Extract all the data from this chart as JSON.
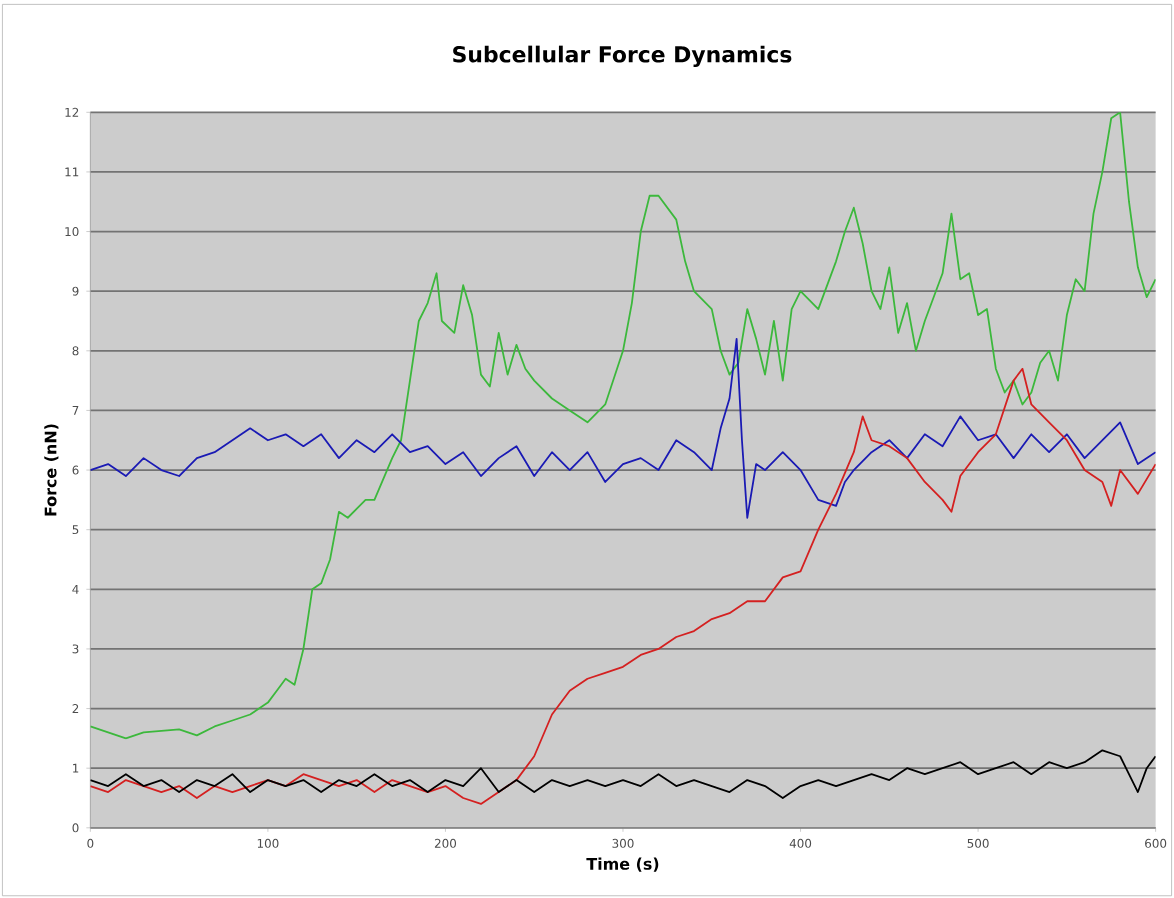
{
  "chart_data": {
    "type": "line",
    "title": "Subcellular Force Dynamics",
    "xlabel": "Time (s)",
    "ylabel": "Force (nN)",
    "xlim": [
      0,
      600
    ],
    "xticks": [
      0,
      100,
      200,
      300,
      400,
      500,
      600
    ],
    "ylim": [
      0,
      12
    ],
    "yticks": [
      0,
      1,
      2,
      3,
      4,
      5,
      6,
      7,
      8,
      9,
      10,
      11,
      12
    ],
    "grid": "y",
    "marker": "none",
    "line_style": "solid",
    "series": [
      {
        "color": "#3cb83c",
        "x": [
          0,
          10,
          20,
          30,
          50,
          60,
          70,
          80,
          90,
          100,
          105,
          110,
          115,
          120,
          125,
          130,
          135,
          140,
          145,
          155,
          160,
          170,
          175,
          180,
          185,
          190,
          195,
          198,
          205,
          210,
          215,
          220,
          225,
          230,
          235,
          240,
          245,
          250,
          260,
          270,
          280,
          290,
          300,
          305,
          310,
          315,
          320,
          330,
          335,
          340,
          350,
          355,
          360,
          365,
          370,
          375,
          380,
          385,
          390,
          395,
          400,
          410,
          420,
          425,
          430,
          435,
          440,
          445,
          450,
          455,
          460,
          465,
          470,
          480,
          485,
          490,
          495,
          500,
          505,
          510,
          515,
          520,
          525,
          530,
          535,
          540,
          545,
          550,
          555,
          560,
          565,
          570,
          575,
          580,
          585,
          590,
          595,
          600
        ],
        "values": [
          1.7,
          1.6,
          1.5,
          1.6,
          1.65,
          1.55,
          1.7,
          1.8,
          1.9,
          2.1,
          2.3,
          2.5,
          2.4,
          3.0,
          4.0,
          4.1,
          4.5,
          5.3,
          5.2,
          5.5,
          5.5,
          6.2,
          6.5,
          7.5,
          8.5,
          8.8,
          9.3,
          8.5,
          8.3,
          9.1,
          8.6,
          7.6,
          7.4,
          8.3,
          7.6,
          8.1,
          7.7,
          7.5,
          7.2,
          7.0,
          6.8,
          7.1,
          8.0,
          8.8,
          10.0,
          10.6,
          10.6,
          10.2,
          9.5,
          9.0,
          8.7,
          8.0,
          7.6,
          7.8,
          8.7,
          8.2,
          7.6,
          8.5,
          7.5,
          8.7,
          9.0,
          8.7,
          9.5,
          10.0,
          10.4,
          9.8,
          9.0,
          8.7,
          9.4,
          8.3,
          8.8,
          8.0,
          8.5,
          9.3,
          10.3,
          9.2,
          9.3,
          8.6,
          8.7,
          7.7,
          7.3,
          7.5,
          7.1,
          7.3,
          7.8,
          8.0,
          7.5,
          8.6,
          9.2,
          9.0,
          10.3,
          11.0,
          11.9,
          12.0,
          10.5,
          9.4,
          8.9,
          9.2
        ]
      },
      {
        "color": "#1a1ab4",
        "x": [
          0,
          10,
          20,
          30,
          40,
          50,
          60,
          70,
          80,
          90,
          100,
          110,
          120,
          130,
          140,
          150,
          160,
          170,
          180,
          190,
          200,
          210,
          220,
          230,
          240,
          250,
          260,
          270,
          280,
          290,
          300,
          310,
          320,
          330,
          340,
          350,
          355,
          360,
          364,
          367,
          370,
          375,
          380,
          390,
          400,
          410,
          420,
          425,
          430,
          440,
          450,
          460,
          470,
          480,
          490,
          500,
          510,
          520,
          530,
          540,
          550,
          560,
          570,
          580,
          590,
          600
        ],
        "values": [
          6.0,
          6.1,
          5.9,
          6.2,
          6.0,
          5.9,
          6.2,
          6.3,
          6.5,
          6.7,
          6.5,
          6.6,
          6.4,
          6.6,
          6.2,
          6.5,
          6.3,
          6.6,
          6.3,
          6.4,
          6.1,
          6.3,
          5.9,
          6.2,
          6.4,
          5.9,
          6.3,
          6.0,
          6.3,
          5.8,
          6.1,
          6.2,
          6.0,
          6.5,
          6.3,
          6.0,
          6.7,
          7.2,
          8.2,
          6.5,
          5.2,
          6.1,
          6.0,
          6.3,
          6.0,
          5.5,
          5.4,
          5.8,
          6.0,
          6.3,
          6.5,
          6.2,
          6.6,
          6.4,
          6.9,
          6.5,
          6.6,
          6.2,
          6.6,
          6.3,
          6.6,
          6.2,
          6.5,
          6.8,
          6.1,
          6.3
        ]
      },
      {
        "color": "#d42020",
        "x": [
          0,
          10,
          20,
          30,
          40,
          50,
          60,
          70,
          80,
          90,
          100,
          110,
          120,
          130,
          140,
          150,
          160,
          170,
          180,
          190,
          200,
          210,
          220,
          230,
          240,
          250,
          260,
          270,
          280,
          290,
          300,
          310,
          320,
          330,
          340,
          350,
          360,
          370,
          380,
          390,
          400,
          410,
          420,
          430,
          435,
          440,
          450,
          460,
          470,
          480,
          485,
          490,
          500,
          510,
          520,
          525,
          530,
          540,
          550,
          560,
          570,
          575,
          580,
          590,
          600
        ],
        "values": [
          0.7,
          0.6,
          0.8,
          0.7,
          0.6,
          0.7,
          0.5,
          0.7,
          0.6,
          0.7,
          0.8,
          0.7,
          0.9,
          0.8,
          0.7,
          0.8,
          0.6,
          0.8,
          0.7,
          0.6,
          0.7,
          0.5,
          0.4,
          0.6,
          0.8,
          1.2,
          1.9,
          2.3,
          2.5,
          2.6,
          2.7,
          2.9,
          3.0,
          3.2,
          3.3,
          3.5,
          3.6,
          3.8,
          3.8,
          4.2,
          4.3,
          5.0,
          5.6,
          6.3,
          6.9,
          6.5,
          6.4,
          6.2,
          5.8,
          5.5,
          5.3,
          5.9,
          6.3,
          6.6,
          7.5,
          7.7,
          7.1,
          6.8,
          6.5,
          6.0,
          5.8,
          5.4,
          6.0,
          5.6,
          6.1
        ]
      },
      {
        "color": "#000000",
        "x": [
          0,
          10,
          20,
          30,
          40,
          50,
          60,
          70,
          80,
          90,
          100,
          110,
          120,
          130,
          140,
          150,
          160,
          170,
          180,
          190,
          200,
          210,
          220,
          230,
          240,
          250,
          260,
          270,
          280,
          290,
          300,
          310,
          320,
          330,
          340,
          350,
          360,
          370,
          380,
          390,
          400,
          410,
          420,
          430,
          440,
          450,
          460,
          470,
          480,
          490,
          500,
          510,
          520,
          530,
          540,
          550,
          560,
          570,
          580,
          590,
          595,
          600
        ],
        "values": [
          0.8,
          0.7,
          0.9,
          0.7,
          0.8,
          0.6,
          0.8,
          0.7,
          0.9,
          0.6,
          0.8,
          0.7,
          0.8,
          0.6,
          0.8,
          0.7,
          0.9,
          0.7,
          0.8,
          0.6,
          0.8,
          0.7,
          1.0,
          0.6,
          0.8,
          0.6,
          0.8,
          0.7,
          0.8,
          0.7,
          0.8,
          0.7,
          0.9,
          0.7,
          0.8,
          0.7,
          0.6,
          0.8,
          0.7,
          0.5,
          0.7,
          0.8,
          0.7,
          0.8,
          0.9,
          0.8,
          1.0,
          0.9,
          1.0,
          1.1,
          0.9,
          1.0,
          1.1,
          0.9,
          1.1,
          1.0,
          1.1,
          1.3,
          1.2,
          0.6,
          1.0,
          1.2
        ]
      }
    ]
  }
}
